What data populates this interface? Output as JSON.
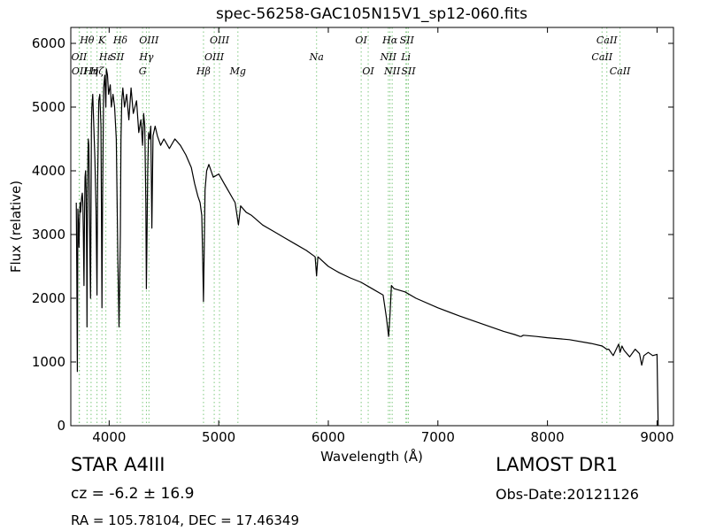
{
  "header": {
    "title": "spec-56258-GAC105N15V1_sp12-060.fits"
  },
  "footer": {
    "object_line": "STAR   A4III",
    "cz_line": "cz = -6.2 ± 16.9",
    "radec_line": "RA = 105.78104, DEC = 17.46349",
    "survey": "LAMOST DR1",
    "obs_date": "Obs-Date:20121126"
  },
  "colors": {
    "spectrum": "#000000",
    "line_marker": "#7fc97f"
  },
  "chart_data": {
    "type": "line",
    "title": "spec-56258-GAC105N15V1_sp12-060.fits",
    "xlabel": "Wavelength (Å)",
    "ylabel": "Flux (relative)",
    "xlim": [
      3650,
      9150
    ],
    "ylim": [
      0,
      6250
    ],
    "xticks": [
      4000,
      5000,
      6000,
      7000,
      8000,
      9000
    ],
    "yticks": [
      0,
      1000,
      2000,
      3000,
      4000,
      5000,
      6000
    ],
    "grid": false,
    "spectral_lines": [
      {
        "label": "Hθ",
        "wavelength": 3798,
        "row": 0
      },
      {
        "label": "K",
        "wavelength": 3934,
        "row": 0
      },
      {
        "label": "Hδ",
        "wavelength": 4102,
        "row": 0
      },
      {
        "label": "OIII",
        "wavelength": 4363,
        "row": 0
      },
      {
        "label": "OIII",
        "wavelength": 5007,
        "row": 0
      },
      {
        "label": "OI",
        "wavelength": 6300,
        "row": 0
      },
      {
        "label": "Hα",
        "wavelength": 6563,
        "row": 0
      },
      {
        "label": "SII",
        "wavelength": 6717,
        "row": 0
      },
      {
        "label": "CaII",
        "wavelength": 8542,
        "row": 0
      },
      {
        "label": "OII",
        "wavelength": 3726,
        "row": 1
      },
      {
        "label": "Hε",
        "wavelength": 3970,
        "row": 1
      },
      {
        "label": "SII",
        "wavelength": 4072,
        "row": 1
      },
      {
        "label": "Hγ",
        "wavelength": 4340,
        "row": 1
      },
      {
        "label": "OIII",
        "wavelength": 4959,
        "row": 1
      },
      {
        "label": "Na",
        "wavelength": 5893,
        "row": 1
      },
      {
        "label": "NII",
        "wavelength": 6548,
        "row": 1
      },
      {
        "label": "Li",
        "wavelength": 6708,
        "row": 1
      },
      {
        "label": "CaII",
        "wavelength": 8498,
        "row": 1
      },
      {
        "label": "OII",
        "wavelength": 3729,
        "row": 2
      },
      {
        "label": "Hη",
        "wavelength": 3835,
        "row": 2
      },
      {
        "label": "Hζ",
        "wavelength": 3889,
        "row": 2
      },
      {
        "label": "G",
        "wavelength": 4305,
        "row": 2
      },
      {
        "label": "Hβ",
        "wavelength": 4861,
        "row": 2
      },
      {
        "label": "Mg",
        "wavelength": 5175,
        "row": 2
      },
      {
        "label": "OI",
        "wavelength": 6364,
        "row": 2
      },
      {
        "label": "NII",
        "wavelength": 6583,
        "row": 2
      },
      {
        "label": "SII",
        "wavelength": 6731,
        "row": 2
      },
      {
        "label": "CaII",
        "wavelength": 8662,
        "row": 2
      }
    ],
    "series": [
      {
        "x": [
          3700,
          3705,
          3710,
          3715,
          3720,
          3725,
          3730,
          3735,
          3740,
          3745,
          3750,
          3755,
          3760,
          3765,
          3770,
          3775,
          3780,
          3785,
          3790,
          3795,
          3798,
          3801,
          3806,
          3810,
          3815,
          3820,
          3825,
          3830,
          3835,
          3838,
          3842,
          3850,
          3860,
          3870,
          3880,
          3889,
          3895,
          3905,
          3915,
          3925,
          3934,
          3940,
          3950,
          3960,
          3970,
          3975,
          3985,
          3995,
          4010,
          4020,
          4035,
          4050,
          4065,
          4080,
          4090,
          4102,
          4108,
          4115,
          4125,
          4140,
          4160,
          4180,
          4200,
          4220,
          4250,
          4270,
          4290,
          4305,
          4315,
          4325,
          4335,
          4340,
          4346,
          4352,
          4360,
          4370,
          4380,
          4390,
          4400,
          4420,
          4440,
          4470,
          4500,
          4550,
          4600,
          4650,
          4700,
          4750,
          4780,
          4810,
          4830,
          4845,
          4855,
          4861,
          4867,
          4875,
          4890,
          4910,
          4950,
          5000,
          5050,
          5100,
          5150,
          5180,
          5200,
          5250,
          5300,
          5400,
          5500,
          5600,
          5700,
          5800,
          5880,
          5893,
          5905,
          6000,
          6100,
          6200,
          6300,
          6400,
          6500,
          6530,
          6550,
          6563,
          6576,
          6600,
          6700,
          6800,
          7000,
          7200,
          7400,
          7600,
          7700,
          7750,
          7760,
          7780,
          7900,
          8000,
          8200,
          8400,
          8500,
          8540,
          8560,
          8600,
          8650,
          8662,
          8680,
          8700,
          8750,
          8800,
          8840,
          8860,
          8880,
          8920,
          8960,
          9000,
          9005,
          9010
        ],
        "y": [
          3500,
          2400,
          850,
          3400,
          3100,
          2800,
          3250,
          3500,
          3350,
          3500,
          3600,
          3650,
          3500,
          3000,
          2200,
          3300,
          3900,
          4000,
          3700,
          2500,
          1550,
          3000,
          4200,
          4500,
          4400,
          3700,
          2600,
          2000,
          3500,
          4700,
          5000,
          5200,
          4700,
          4200,
          3400,
          2050,
          3800,
          5100,
          5200,
          4700,
          1850,
          3500,
          5300,
          5500,
          5000,
          5600,
          5500,
          5200,
          5350,
          5000,
          5200,
          5000,
          4500,
          2600,
          1550,
          3000,
          4500,
          5100,
          5300,
          5000,
          5200,
          4800,
          5300,
          4900,
          5100,
          4600,
          4800,
          4400,
          4900,
          4700,
          3500,
          2150,
          3100,
          4000,
          4600,
          4500,
          4700,
          3100,
          4550,
          4700,
          4550,
          4400,
          4500,
          4350,
          4500,
          4400,
          4250,
          4050,
          3800,
          3600,
          3500,
          3300,
          2500,
          1950,
          2700,
          3700,
          4000,
          4100,
          3900,
          3950,
          3800,
          3650,
          3500,
          3150,
          3450,
          3350,
          3300,
          3150,
          3050,
          2950,
          2850,
          2750,
          2650,
          2350,
          2650,
          2500,
          2400,
          2320,
          2250,
          2150,
          2050,
          1700,
          1400,
          1750,
          2200,
          2150,
          2100,
          2000,
          1850,
          1720,
          1600,
          1480,
          1430,
          1400,
          1400,
          1420,
          1400,
          1380,
          1350,
          1290,
          1250,
          1200,
          1200,
          1100,
          1280,
          1150,
          1250,
          1180,
          1080,
          1200,
          1130,
          950,
          1100,
          1150,
          1100,
          1120,
          600,
          0
        ]
      }
    ]
  }
}
